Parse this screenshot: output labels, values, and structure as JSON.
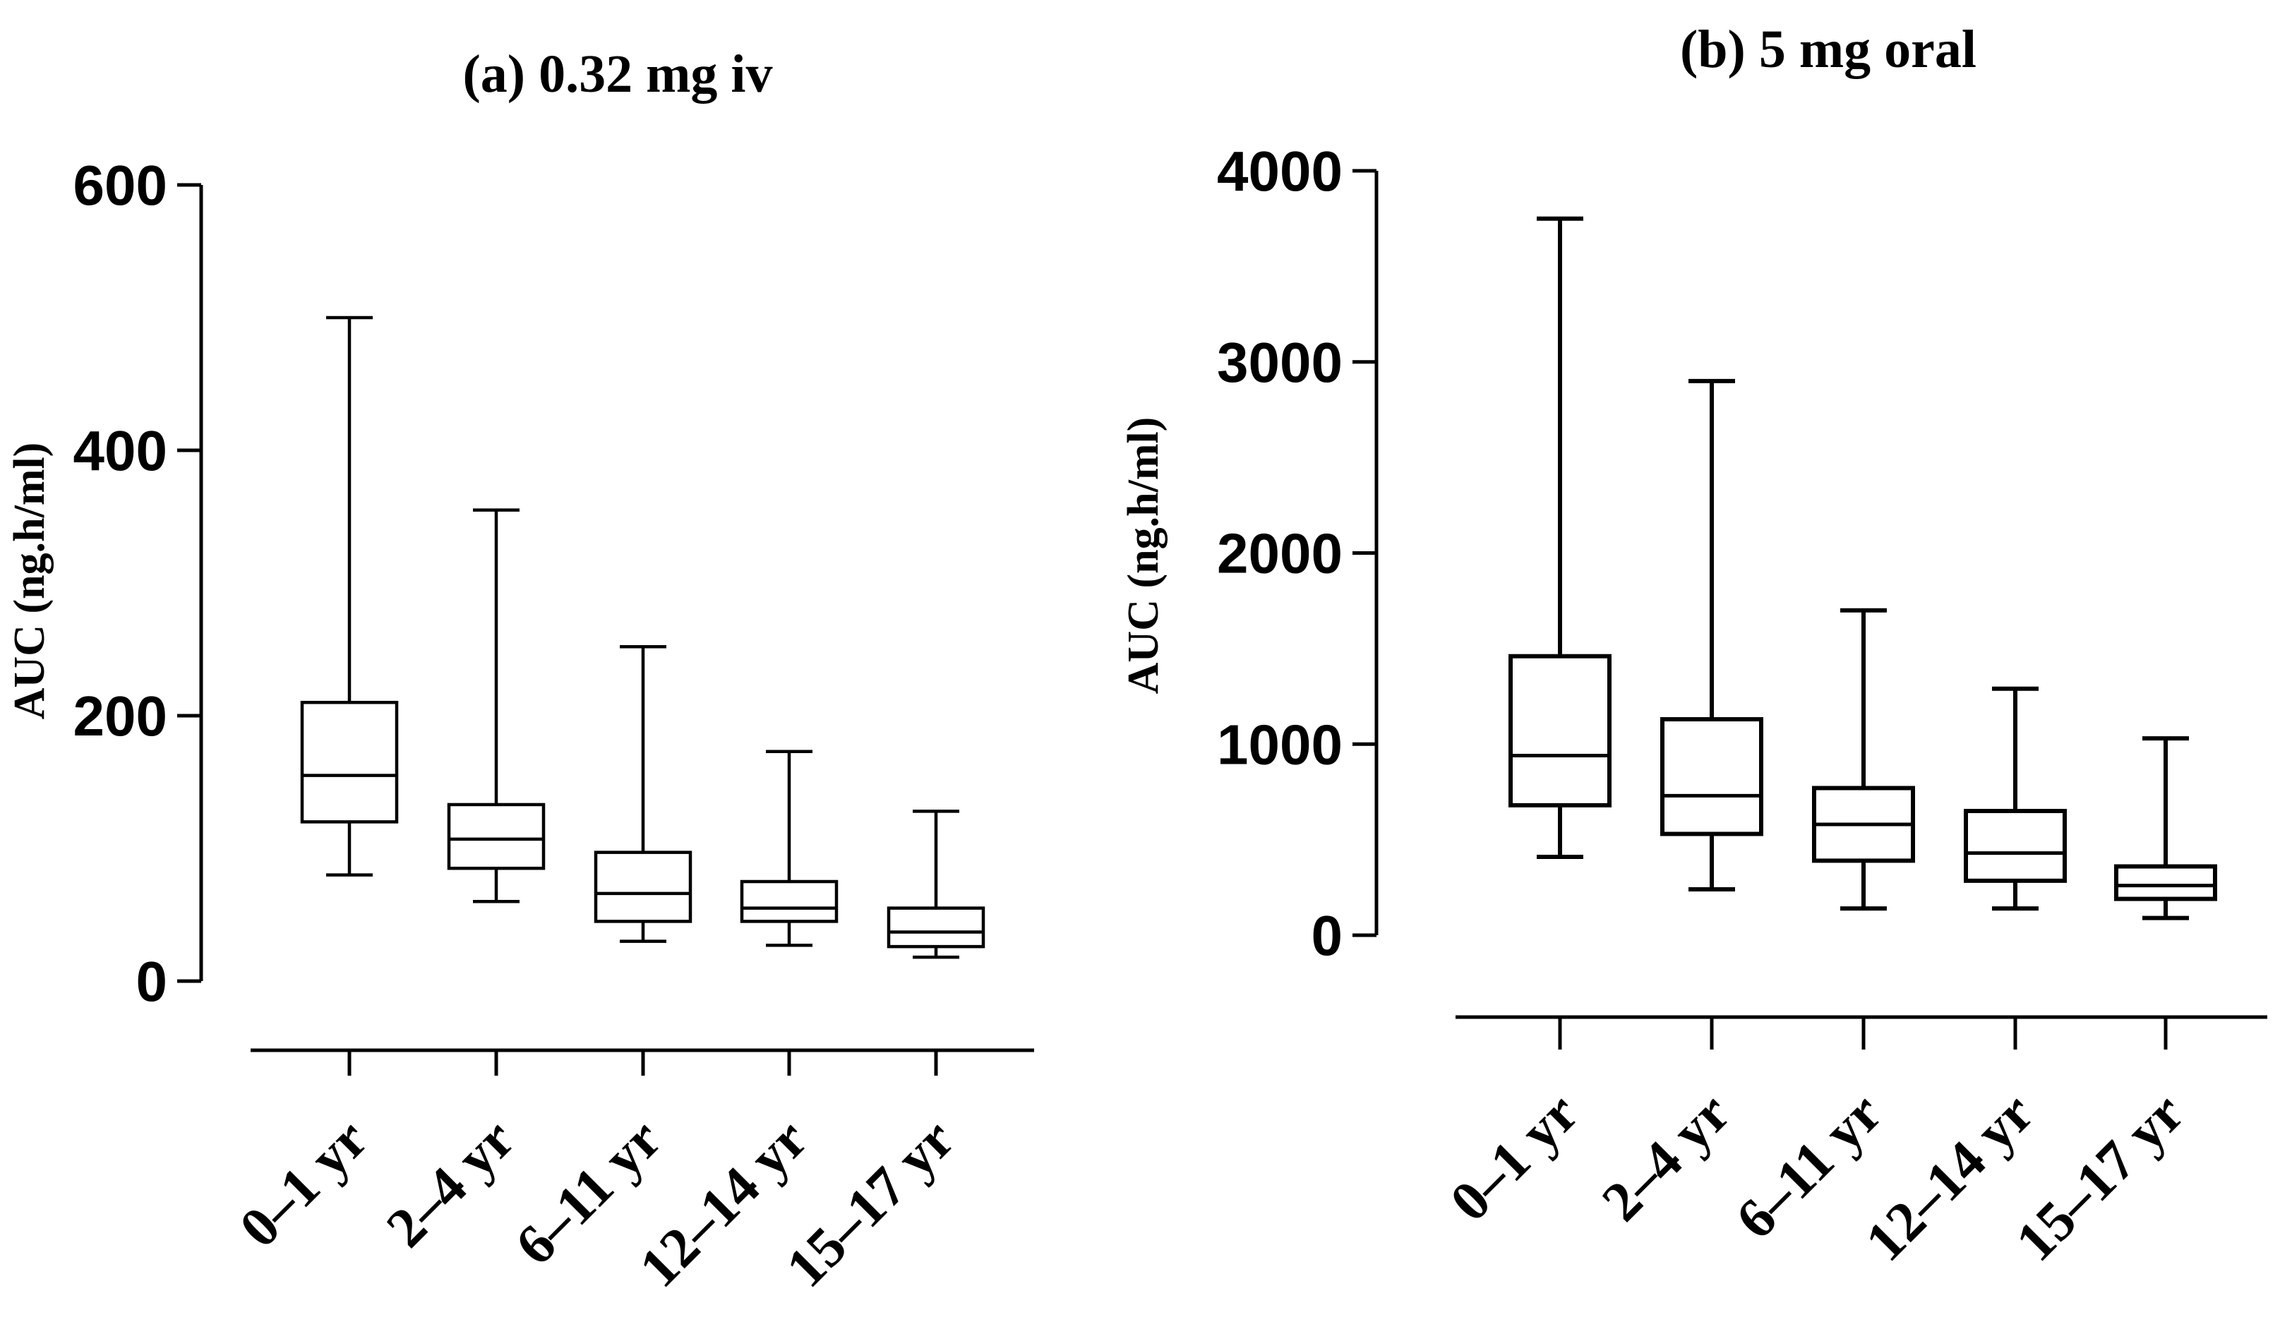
{
  "chart_data": [
    {
      "type": "boxplot",
      "title": "(a) 0.32 mg iv",
      "ylabel": "AUC (ng.h/ml)",
      "xlabel": "",
      "ylim": [
        0,
        600
      ],
      "yticks": [
        0,
        200,
        400,
        600
      ],
      "categories": [
        "0–1 yr",
        "2–4 yr",
        "6–11 yr",
        "12–14 yr",
        "15–17 yr"
      ],
      "boxes": [
        {
          "min": 80,
          "q1": 120,
          "median": 155,
          "q3": 210,
          "max": 500
        },
        {
          "min": 60,
          "q1": 85,
          "median": 107,
          "q3": 133,
          "max": 355
        },
        {
          "min": 30,
          "q1": 45,
          "median": 66,
          "q3": 97,
          "max": 252
        },
        {
          "min": 27,
          "q1": 45,
          "median": 55,
          "q3": 75,
          "max": 173
        },
        {
          "min": 18,
          "q1": 26,
          "median": 37,
          "q3": 55,
          "max": 128
        }
      ]
    },
    {
      "type": "boxplot",
      "title": "(b) 5 mg oral",
      "ylabel": "AUC (ng.h/ml)",
      "xlabel": "",
      "ylim": [
        0,
        4000
      ],
      "yticks": [
        0,
        1000,
        2000,
        3000,
        4000
      ],
      "categories": [
        "0–1 yr",
        "2–4 yr",
        "6–11 yr",
        "12–14 yr",
        "15–17 yr"
      ],
      "boxes": [
        {
          "min": 410,
          "q1": 680,
          "median": 940,
          "q3": 1460,
          "max": 3750
        },
        {
          "min": 240,
          "q1": 530,
          "median": 730,
          "q3": 1130,
          "max": 2900
        },
        {
          "min": 140,
          "q1": 390,
          "median": 580,
          "q3": 770,
          "max": 1700
        },
        {
          "min": 140,
          "q1": 285,
          "median": 430,
          "q3": 650,
          "max": 1290
        },
        {
          "min": 90,
          "q1": 190,
          "median": 260,
          "q3": 360,
          "max": 1030
        }
      ]
    }
  ]
}
